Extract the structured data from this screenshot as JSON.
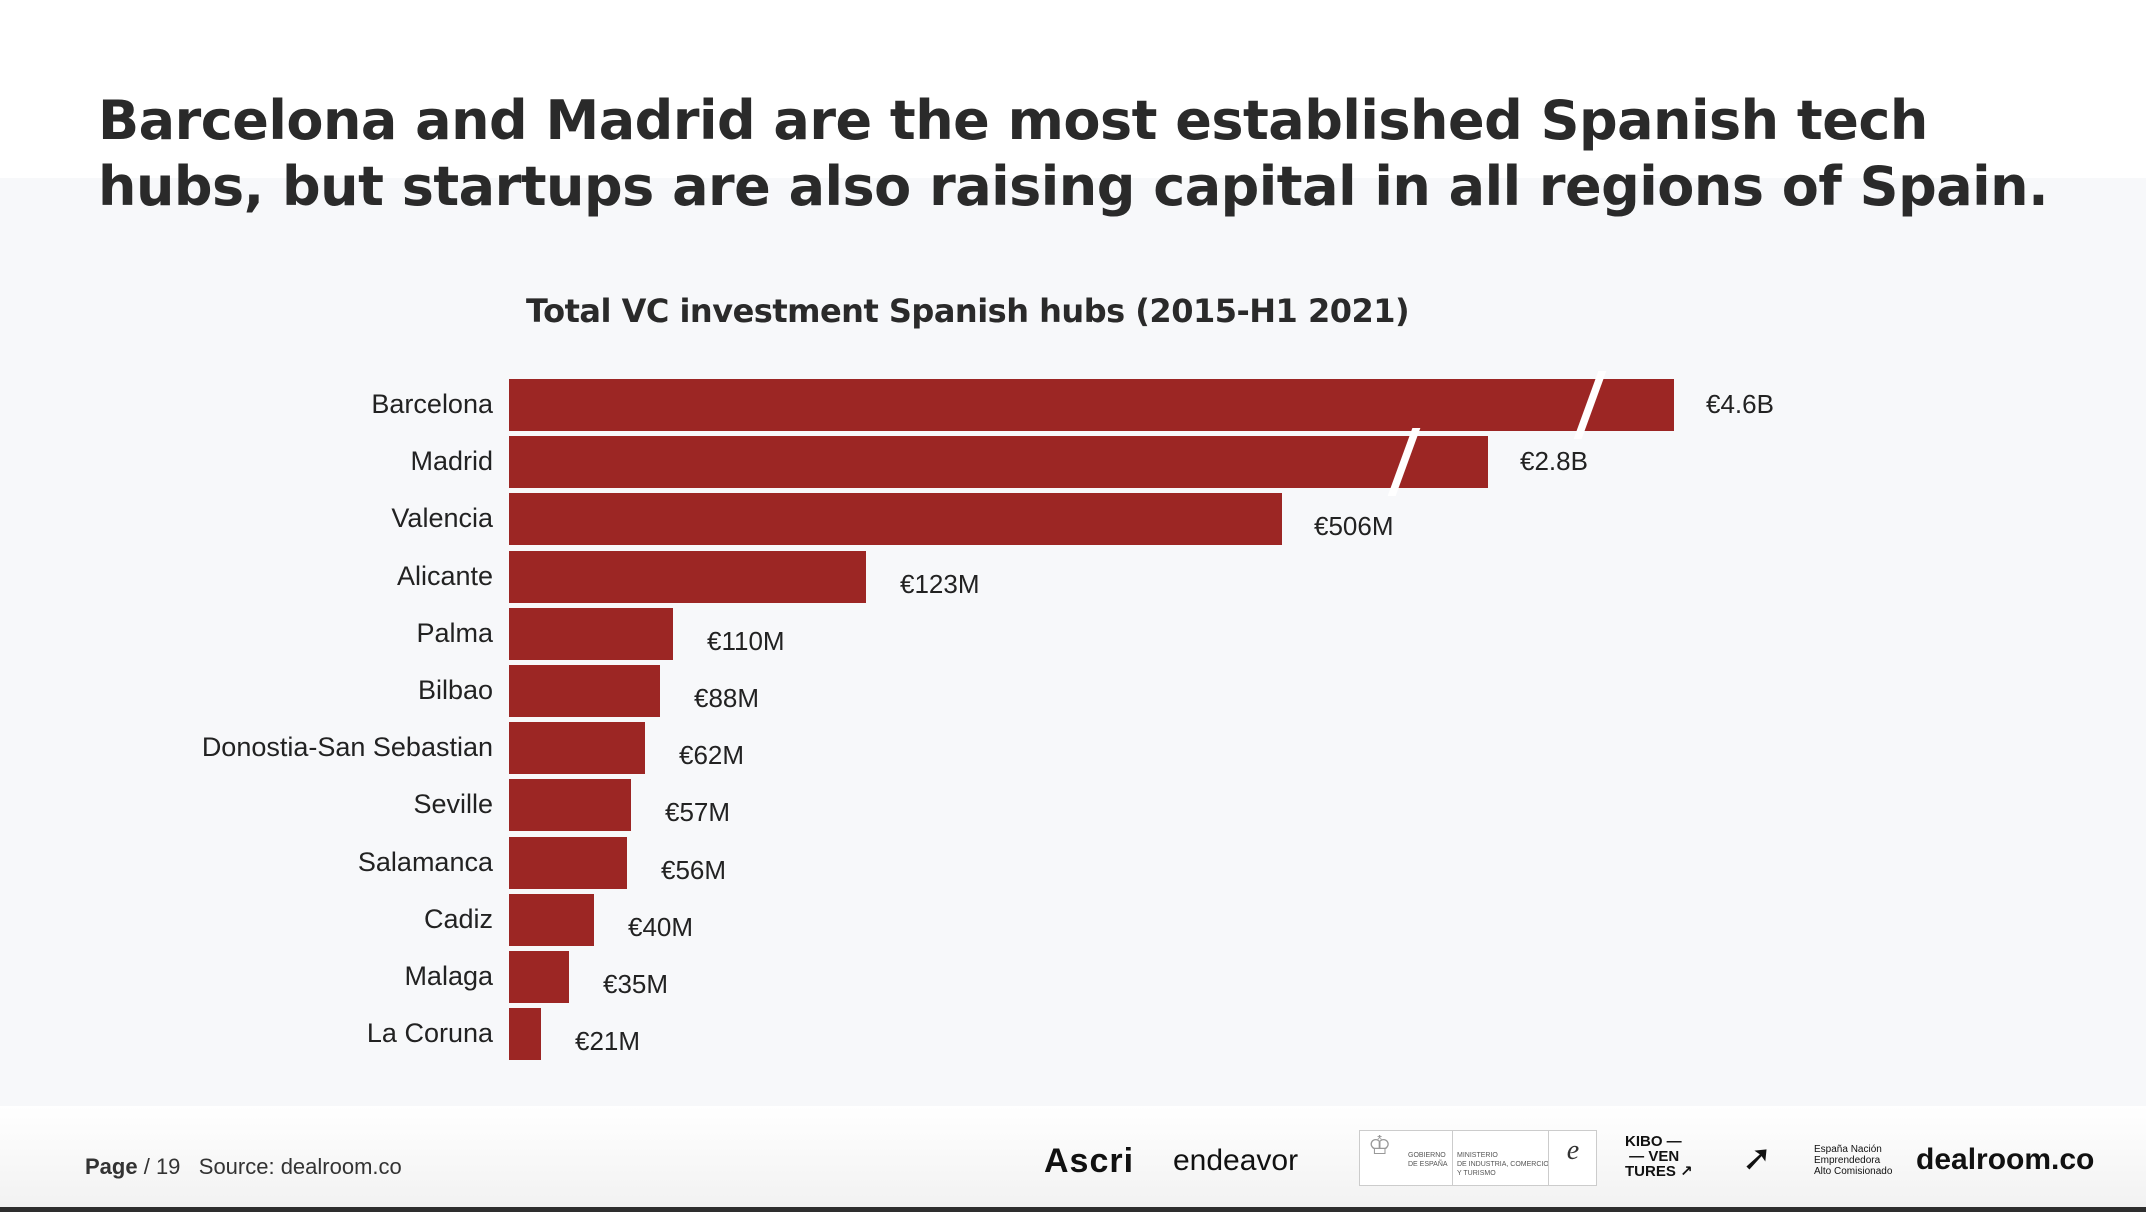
{
  "title": "Barcelona and Madrid are the most established Spanish tech hubs, but startups are also raising capital in all regions of Spain.",
  "chart_data": {
    "type": "bar",
    "orientation": "horizontal",
    "title": "Total VC investment Spanish hubs (2015-H1 2021)",
    "categories": [
      "Barcelona",
      "Madrid",
      "Valencia",
      "Alicante",
      "Palma",
      "Bilbao",
      "Donostia-San Sebastian",
      "Seville",
      "Salamanca",
      "Cadiz",
      "Malaga",
      "La Coruna"
    ],
    "values": [
      4600,
      2800,
      506,
      123,
      110,
      88,
      62,
      57,
      56,
      40,
      35,
      21
    ],
    "unit": "€M",
    "data_labels": [
      "€4.6B",
      "€2.8B",
      "€506M",
      "€123M",
      "€110M",
      "€88M",
      "€62M",
      "€57M",
      "€56M",
      "€40M",
      "€35M",
      "€21M"
    ],
    "broken_bars": [
      "Barcelona",
      "Madrid"
    ],
    "bar_color": "#9c2624",
    "grid": false,
    "legend": "none"
  },
  "footer": {
    "page_label": "Page",
    "page_number": "/ 19",
    "source": "Source: dealroom.co",
    "logos": [
      "Ascri",
      "endeavor",
      "GOBIERNO DE ESPAÑA · MINISTERIO DE INDUSTRIA, COMERCIO Y TURISMO · enisa",
      "KIBO VENTURES",
      "España Nación Emprendedora Alto Comisionado",
      "dealroom.co"
    ]
  }
}
